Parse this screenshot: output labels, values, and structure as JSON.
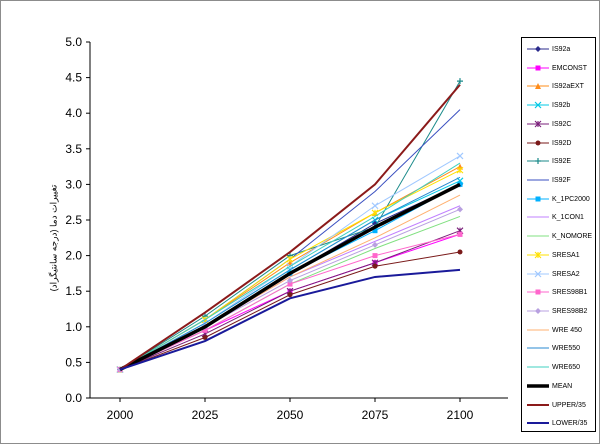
{
  "chart_data": {
    "type": "line",
    "title": "",
    "xlabel": "",
    "ylabel": "تغييرات دما (درجه سانتيگراد)",
    "x": [
      2000,
      2025,
      2050,
      2075,
      2100
    ],
    "ylim": [
      0,
      5
    ],
    "yticks": [
      "0.0",
      "0.5",
      "1.0",
      "1.5",
      "2.0",
      "2.5",
      "3.0",
      "3.5",
      "4.0",
      "4.5",
      "5.0"
    ],
    "xticks": [
      "2000",
      "2025",
      "2050",
      "2075",
      "2100"
    ],
    "grid": false,
    "legend_position": "right",
    "series": [
      {
        "name": "IS92a",
        "color": "#2b2b8c",
        "marker": "diamond",
        "values": [
          0.4,
          1.0,
          1.75,
          2.45,
          3.0
        ]
      },
      {
        "name": "EMCONST",
        "color": "#ff00ff",
        "marker": "square",
        "values": [
          0.4,
          0.95,
          1.5,
          1.9,
          2.3
        ]
      },
      {
        "name": "IS92aEXT",
        "color": "#ff8c1a",
        "marker": "triangle",
        "values": [
          0.4,
          1.1,
          1.9,
          2.6,
          3.25
        ]
      },
      {
        "name": "IS92b",
        "color": "#00c8e6",
        "marker": "x",
        "values": [
          0.4,
          1.05,
          1.8,
          2.5,
          3.05
        ]
      },
      {
        "name": "IS92C",
        "color": "#7a1f7a",
        "marker": "star",
        "values": [
          0.4,
          0.9,
          1.5,
          1.9,
          2.35
        ]
      },
      {
        "name": "IS92D",
        "color": "#7a1a1a",
        "marker": "circle",
        "values": [
          0.4,
          0.85,
          1.45,
          1.85,
          2.05
        ]
      },
      {
        "name": "IS92E",
        "color": "#1a8a8a",
        "marker": "plus",
        "values": [
          0.4,
          1.15,
          2.0,
          2.4,
          4.45
        ]
      },
      {
        "name": "IS92F",
        "color": "#3a4fc0",
        "marker": "none",
        "values": [
          0.4,
          1.1,
          1.95,
          2.9,
          4.05
        ]
      },
      {
        "name": "K_1PC2000",
        "color": "#00b0ff",
        "marker": "square",
        "values": [
          0.4,
          1.0,
          1.75,
          2.35,
          3.0
        ]
      },
      {
        "name": "K_1CON1",
        "color": "#c080ff",
        "marker": "none",
        "values": [
          0.4,
          1.0,
          1.7,
          2.2,
          2.7
        ]
      },
      {
        "name": "K_NOMORE",
        "color": "#80e080",
        "marker": "none",
        "values": [
          0.4,
          0.95,
          1.6,
          2.1,
          2.55
        ]
      },
      {
        "name": "SRESA1",
        "color": "#ffe000",
        "marker": "star",
        "values": [
          0.4,
          1.1,
          1.95,
          2.6,
          3.2
        ]
      },
      {
        "name": "SRESA2",
        "color": "#a0c8ff",
        "marker": "x",
        "values": [
          0.4,
          1.05,
          1.85,
          2.7,
          3.4
        ]
      },
      {
        "name": "SRES98B1",
        "color": "#ff66cc",
        "marker": "square",
        "values": [
          0.4,
          0.95,
          1.6,
          2.0,
          2.3
        ]
      },
      {
        "name": "SRES98B2",
        "color": "#b8a0e0",
        "marker": "diamond",
        "values": [
          0.4,
          1.0,
          1.65,
          2.15,
          2.65
        ]
      },
      {
        "name": "WRE 450",
        "color": "#ffb070",
        "marker": "none",
        "values": [
          0.4,
          1.0,
          1.7,
          2.25,
          2.85
        ]
      },
      {
        "name": "WRE550",
        "color": "#2a8ad0",
        "marker": "none",
        "values": [
          0.4,
          1.05,
          1.8,
          2.5,
          3.1
        ]
      },
      {
        "name": "WRE650",
        "color": "#40d0c0",
        "marker": "none",
        "values": [
          0.4,
          1.1,
          1.85,
          2.55,
          3.3
        ]
      },
      {
        "name": "MEAN",
        "color": "#000000",
        "marker": "none",
        "values": [
          0.4,
          1.0,
          1.75,
          2.4,
          3.0
        ]
      },
      {
        "name": "UPPER/35",
        "color": "#8b1a1a",
        "marker": "none",
        "values": [
          0.4,
          1.2,
          2.05,
          3.0,
          4.4
        ]
      },
      {
        "name": "LOWER/35",
        "color": "#1a1a9a",
        "marker": "none",
        "values": [
          0.4,
          0.8,
          1.4,
          1.7,
          1.8
        ]
      }
    ]
  },
  "colors": {
    "axis": "#000000",
    "frame": "#8c8c8c",
    "background": "#ffffff"
  }
}
